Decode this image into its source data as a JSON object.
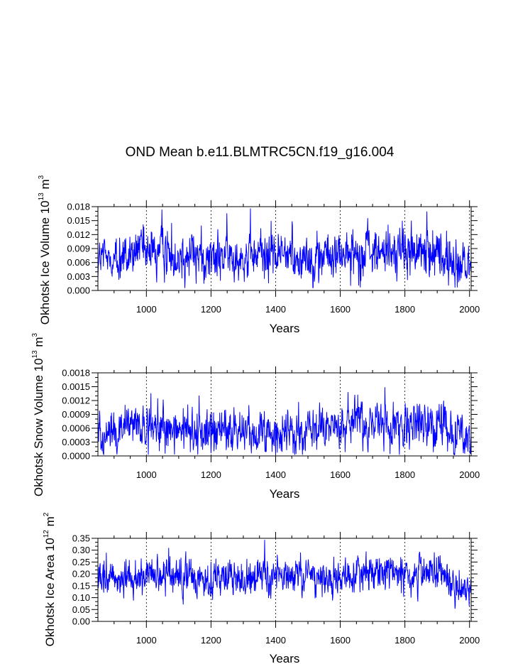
{
  "title": "OND Mean b.e11.BLMTRC5CN.f19_g16.004",
  "line_color": "#0000ff",
  "chart_data": [
    {
      "type": "line",
      "xlabel": "Years",
      "ylabel_main": "Okhotsk Ice Volume 10",
      "ylabel_exp": "13",
      "ylabel_unit": "m",
      "ylabel_unit_exp": "3",
      "xlim": [
        850,
        2005
      ],
      "ylim": [
        0,
        0.018
      ],
      "xticks": [
        1000,
        1200,
        1400,
        1600,
        1800,
        2000
      ],
      "yticks": [
        0,
        0.003,
        0.006,
        0.009,
        0.012,
        0.015,
        0.018
      ],
      "ytick_labels": [
        "0.000",
        "0.003",
        "0.006",
        "0.009",
        "0.012",
        "0.015",
        "0.018"
      ],
      "series": [
        {
          "name": "Okhotsk Ice Volume",
          "x": [
            850,
            900,
            950,
            1000,
            1050,
            1100,
            1150,
            1200,
            1250,
            1300,
            1350,
            1400,
            1450,
            1500,
            1550,
            1600,
            1650,
            1700,
            1750,
            1800,
            1850,
            1900,
            1950,
            2005
          ],
          "mean": [
            0.0068,
            0.007,
            0.0072,
            0.0078,
            0.008,
            0.0075,
            0.007,
            0.0066,
            0.0075,
            0.0068,
            0.0072,
            0.0075,
            0.0076,
            0.0072,
            0.007,
            0.0078,
            0.008,
            0.0082,
            0.0085,
            0.0083,
            0.008,
            0.0085,
            0.005,
            0.005
          ],
          "amplitude": 0.003,
          "min": 0.0005,
          "max": 0.018
        }
      ]
    },
    {
      "type": "line",
      "xlabel": "Years",
      "ylabel_main": "Okhotsk Snow Volume 10",
      "ylabel_exp": "13",
      "ylabel_unit": "m",
      "ylabel_unit_exp": "3",
      "xlim": [
        850,
        2005
      ],
      "ylim": [
        0,
        0.0018
      ],
      "xticks": [
        1000,
        1200,
        1400,
        1600,
        1800,
        2000
      ],
      "yticks": [
        0,
        0.0003,
        0.0006,
        0.0009,
        0.0012,
        0.0015,
        0.0018
      ],
      "ytick_labels": [
        "0.0000",
        "0.0003",
        "0.0006",
        "0.0009",
        "0.0012",
        "0.0015",
        "0.0018"
      ],
      "series": [
        {
          "name": "Okhotsk Snow Volume",
          "x": [
            850,
            900,
            950,
            1000,
            1050,
            1100,
            1150,
            1200,
            1250,
            1300,
            1350,
            1400,
            1450,
            1500,
            1550,
            1600,
            1650,
            1700,
            1750,
            1800,
            1850,
            1900,
            1950,
            2005
          ],
          "mean": [
            0.00055,
            0.00055,
            0.00058,
            0.0006,
            0.00058,
            0.00055,
            0.0005,
            0.0005,
            0.00052,
            0.00052,
            0.00055,
            0.00048,
            0.0005,
            0.00052,
            0.00055,
            0.00065,
            0.00068,
            0.0007,
            0.00068,
            0.00068,
            0.00065,
            0.00068,
            0.0004,
            0.00035
          ],
          "amplitude": 0.00028,
          "min": 2e-05,
          "max": 0.0018
        }
      ]
    },
    {
      "type": "line",
      "xlabel": "Years",
      "ylabel_main": "Okhotsk Ice Area 10",
      "ylabel_exp": "12",
      "ylabel_unit": "m",
      "ylabel_unit_exp": "2",
      "xlim": [
        850,
        2005
      ],
      "ylim": [
        0,
        0.35
      ],
      "xticks": [
        1000,
        1200,
        1400,
        1600,
        1800,
        2000
      ],
      "yticks": [
        0,
        0.05,
        0.1,
        0.15,
        0.2,
        0.25,
        0.3,
        0.35
      ],
      "ytick_labels": [
        "0.00",
        "0.05",
        "0.10",
        "0.15",
        "0.20",
        "0.25",
        "0.30",
        "0.35"
      ],
      "series": [
        {
          "name": "Okhotsk Ice Area",
          "x": [
            850,
            900,
            950,
            1000,
            1050,
            1100,
            1150,
            1200,
            1250,
            1300,
            1350,
            1400,
            1450,
            1500,
            1550,
            1600,
            1650,
            1700,
            1750,
            1800,
            1850,
            1900,
            1950,
            2005
          ],
          "mean": [
            0.17,
            0.18,
            0.18,
            0.19,
            0.19,
            0.18,
            0.17,
            0.17,
            0.19,
            0.18,
            0.18,
            0.19,
            0.19,
            0.18,
            0.18,
            0.19,
            0.2,
            0.2,
            0.21,
            0.21,
            0.2,
            0.21,
            0.14,
            0.14
          ],
          "amplitude": 0.045,
          "min": 0.03,
          "max": 0.345
        }
      ]
    }
  ]
}
